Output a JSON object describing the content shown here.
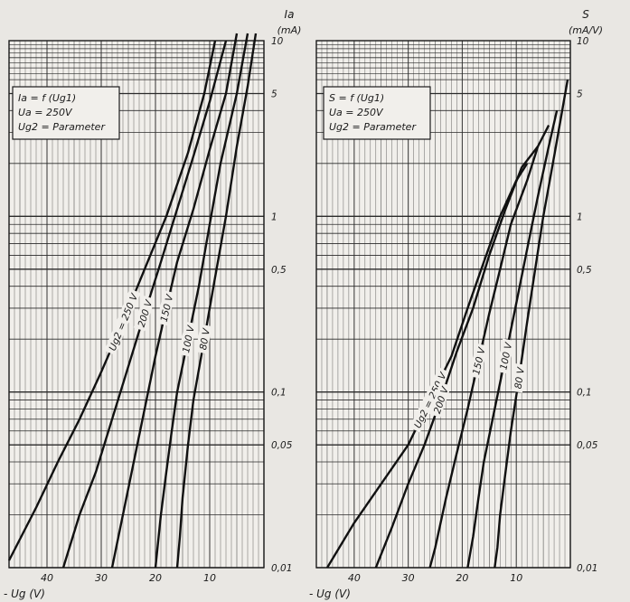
{
  "chart_data": [
    {
      "type": "line",
      "y_scale": "log",
      "ylim": [
        0.01,
        10
      ],
      "x_reversed": true,
      "xlim": [
        47,
        0
      ],
      "xlabel": "- Ug (V)",
      "ylabel": "Ia",
      "yunit": "(mA)",
      "legend": [
        "Ia = f (Ug1)",
        "Ua = 250V",
        "Ug2 = Parameter"
      ],
      "x_ticks": [
        "40",
        "30",
        "20",
        "10"
      ],
      "y_ticks": [
        "10",
        "5",
        "1",
        "0,5",
        "0,1",
        "0,05",
        "0,01"
      ],
      "grid": true,
      "series": [
        {
          "name": "Ug2 = 250 V",
          "x": [
            47,
            42,
            38,
            34,
            30,
            26,
            22,
            18,
            14,
            11,
            9
          ],
          "y": [
            0.011,
            0.022,
            0.04,
            0.07,
            0.13,
            0.25,
            0.5,
            1.0,
            2.3,
            5.0,
            10.0
          ]
        },
        {
          "name": "200 V",
          "x": [
            37,
            34,
            31,
            28,
            25,
            22,
            19,
            16,
            13,
            10,
            7
          ],
          "y": [
            0.01,
            0.02,
            0.035,
            0.07,
            0.14,
            0.28,
            0.55,
            1.1,
            2.2,
            4.5,
            10.0
          ]
        },
        {
          "name": "150 V",
          "x": [
            28,
            26,
            24,
            22,
            20,
            18,
            16,
            13,
            10,
            7,
            5
          ],
          "y": [
            0.01,
            0.02,
            0.04,
            0.08,
            0.16,
            0.3,
            0.55,
            1.1,
            2.4,
            5.0,
            11.0
          ]
        },
        {
          "name": "100 V",
          "x": [
            20,
            19,
            18,
            17,
            16,
            14,
            12,
            10,
            8,
            5,
            3
          ],
          "y": [
            0.01,
            0.02,
            0.035,
            0.06,
            0.1,
            0.2,
            0.4,
            0.9,
            2.0,
            5.0,
            11.0
          ]
        },
        {
          "name": "80 V",
          "x": [
            16,
            15.5,
            15,
            14,
            13,
            11,
            9,
            7,
            5,
            3,
            1.5
          ],
          "y": [
            0.01,
            0.015,
            0.025,
            0.05,
            0.09,
            0.2,
            0.45,
            1.0,
            2.5,
            5.5,
            11.0
          ]
        }
      ]
    },
    {
      "type": "line",
      "y_scale": "log",
      "ylim": [
        0.01,
        10
      ],
      "x_reversed": true,
      "xlim": [
        47,
        0
      ],
      "xlabel": "- Ug (V)",
      "ylabel": "S",
      "yunit": "(mA/V)",
      "legend": [
        "S = f (Ug1)",
        "Ua = 250V",
        "Ug2 = Parameter"
      ],
      "x_ticks": [
        "40",
        "30",
        "20",
        "10"
      ],
      "y_ticks": [
        "10",
        "5",
        "1",
        "0,5",
        "0,1",
        "0,05",
        "0,01"
      ],
      "grid": true,
      "series": [
        {
          "name": "Ug2 = 250 V",
          "x": [
            45,
            40,
            35,
            30,
            26,
            22,
            19,
            16,
            13,
            10,
            8
          ],
          "y": [
            0.01,
            0.018,
            0.03,
            0.05,
            0.09,
            0.16,
            0.3,
            0.55,
            1.0,
            1.6,
            2.0
          ]
        },
        {
          "name": "200 V",
          "x": [
            36,
            33,
            30,
            27,
            24,
            21,
            18,
            15,
            12,
            9,
            6
          ],
          "y": [
            0.01,
            0.017,
            0.03,
            0.05,
            0.09,
            0.17,
            0.3,
            0.6,
            1.1,
            1.9,
            2.5
          ]
        },
        {
          "name": "150 V",
          "x": [
            26,
            25,
            23,
            21,
            19,
            17,
            15,
            13,
            11,
            8,
            6,
            4
          ],
          "y": [
            0.01,
            0.013,
            0.025,
            0.045,
            0.08,
            0.15,
            0.28,
            0.5,
            0.9,
            1.6,
            2.5,
            3.3
          ]
        },
        {
          "name": "100 V",
          "x": [
            19,
            18,
            17,
            16,
            14,
            12,
            10,
            8,
            6,
            4,
            2.5
          ],
          "y": [
            0.01,
            0.015,
            0.025,
            0.04,
            0.08,
            0.16,
            0.32,
            0.65,
            1.3,
            2.5,
            4.0
          ]
        },
        {
          "name": "80 V",
          "x": [
            14,
            13.5,
            13,
            12,
            11,
            9.5,
            8,
            6.5,
            5,
            3,
            1.5,
            0.5
          ],
          "y": [
            0.01,
            0.013,
            0.02,
            0.035,
            0.06,
            0.12,
            0.25,
            0.5,
            1.0,
            2.2,
            4.0,
            6.0
          ]
        }
      ]
    }
  ]
}
